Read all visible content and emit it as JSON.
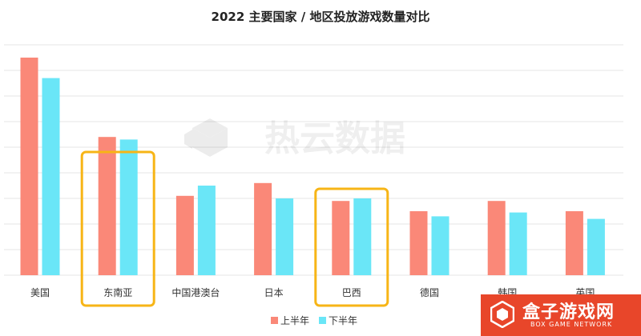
{
  "chart_data": {
    "type": "bar",
    "title": "2022 主要国家 / 地区投放游戏数量对比",
    "categories": [
      "美国",
      "东南亚",
      "中国港澳台",
      "日本",
      "巴西",
      "德国",
      "韩国",
      "英国"
    ],
    "series": [
      {
        "name": "上半年",
        "values": [
          8.5,
          5.4,
          3.1,
          3.6,
          2.9,
          2.5,
          2.9,
          2.5
        ]
      },
      {
        "name": "下半年",
        "values": [
          7.7,
          5.3,
          3.5,
          3.0,
          3.0,
          2.3,
          2.45,
          2.2
        ]
      }
    ],
    "ylim": [
      0,
      9
    ],
    "grid": true,
    "y_tick_labels_shown": false,
    "legend_position": "bottom-center",
    "highlighted_categories": [
      "东南亚",
      "巴西"
    ]
  },
  "colors": {
    "series": [
      "#fa8878",
      "#6ae6f7"
    ],
    "highlight_box": "#f7b516",
    "grid": "#e4e4e4",
    "brand_bg": "#e8462a"
  },
  "watermark": {
    "text": "热云数据",
    "icon": "cube-logo-icon"
  },
  "brand": {
    "name": "盒子游戏网",
    "subtitle": "BOX GAME NETWORK",
    "icon": "box-logo-icon"
  }
}
